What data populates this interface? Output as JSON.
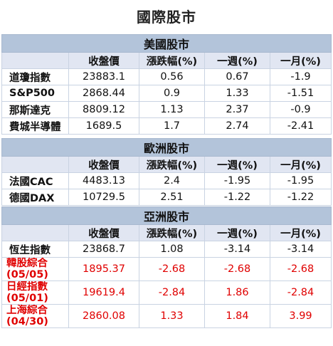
{
  "title": "國際股市",
  "columns": [
    "",
    "收盤價",
    "漲跌幅(%)",
    "一週(%)",
    "一月(%)"
  ],
  "sections": [
    {
      "name": "美國股市",
      "rows": [
        {
          "name": "道瓊指數",
          "close": "23883.1",
          "change": "0.56",
          "week": "0.67",
          "month": "-1.9"
        },
        {
          "name": "S&P500",
          "close": "2868.44",
          "change": "0.9",
          "week": "1.33",
          "month": "-1.51"
        },
        {
          "name": "那斯達克",
          "close": "8809.12",
          "change": "1.13",
          "week": "2.37",
          "month": "-0.9"
        },
        {
          "name": "費城半導體",
          "close": "1689.5",
          "change": "1.7",
          "week": "2.74",
          "month": "-2.41"
        }
      ]
    },
    {
      "name": "歐洲股市",
      "rows": [
        {
          "name": "法國CAC",
          "close": "4483.13",
          "change": "2.4",
          "week": "-1.95",
          "month": "-1.95"
        },
        {
          "name": "德國DAX",
          "close": "10729.5",
          "change": "2.51",
          "week": "-1.22",
          "month": "-1.22"
        }
      ]
    },
    {
      "name": "亞洲股市",
      "rows": [
        {
          "name": "恆生指數",
          "close": "23868.7",
          "change": "1.08",
          "week": "-3.14",
          "month": "-3.14"
        },
        {
          "name": "韓股綜合",
          "date": "(05/05)",
          "close": "1895.37",
          "change": "-2.68",
          "week": "-2.68",
          "month": "-2.68"
        },
        {
          "name": "日經指數",
          "date": "(05/01)",
          "close": "19619.4",
          "change": "-2.84",
          "week": "1.86",
          "month": "-2.84"
        },
        {
          "name": "上海綜合",
          "date": "(04/30)",
          "close": "2860.08",
          "change": "1.33",
          "week": "1.84",
          "month": "3.99"
        }
      ]
    }
  ],
  "colors": {
    "section_bg": "#b3c4da",
    "header_bg": "#e1e6f2",
    "highlight": "#e00000"
  }
}
